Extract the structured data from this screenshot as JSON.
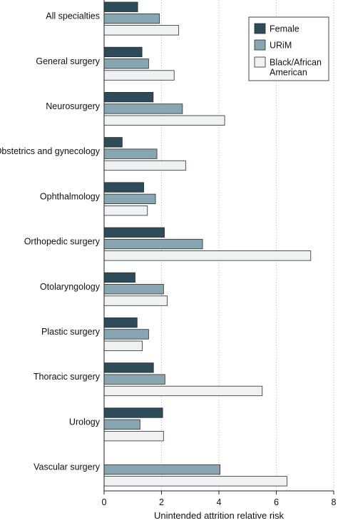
{
  "chart_data": {
    "type": "bar",
    "orientation": "horizontal",
    "categories": [
      "All specialties",
      "General surgery",
      "Neurosurgery",
      "Obstetrics and gynecology",
      "Ophthalmology",
      "Orthopedic surgery",
      "Otolaryngology",
      "Plastic surgery",
      "Thoracic surgery",
      "Urology",
      "Vascular surgery"
    ],
    "series": [
      {
        "name": "Female",
        "color": "#2e4b5a",
        "values": [
          1.17,
          1.32,
          1.71,
          0.63,
          1.38,
          2.1,
          1.08,
          1.15,
          1.72,
          2.04,
          0.0
        ]
      },
      {
        "name": "URiM",
        "color": "#88a6b1",
        "values": [
          1.93,
          1.55,
          2.73,
          1.84,
          1.79,
          3.43,
          2.07,
          1.55,
          2.12,
          1.25,
          4.04
        ]
      },
      {
        "name": "Black/African American",
        "color": "#eef2f3",
        "values": [
          2.6,
          2.44,
          4.2,
          2.84,
          1.51,
          7.2,
          2.2,
          1.33,
          5.51,
          2.07,
          6.37
        ]
      }
    ],
    "legend_lines": [
      [
        "Female"
      ],
      [
        "URiM"
      ],
      [
        "Black/African",
        "American"
      ]
    ],
    "xlabel": "Unintended attrition relative risk",
    "xlim": [
      0,
      8
    ],
    "xticks": [
      0,
      2,
      4,
      6,
      8
    ],
    "grid": "vertical",
    "legend_position": "top-right"
  }
}
